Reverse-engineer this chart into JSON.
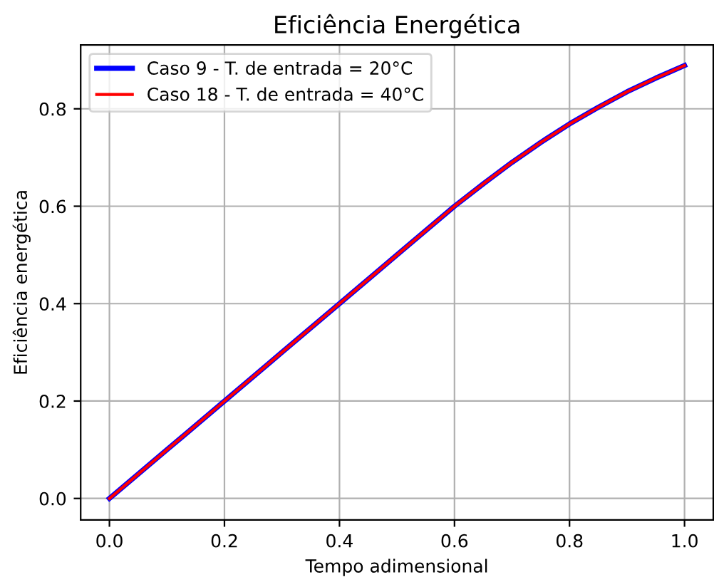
{
  "chart_data": {
    "type": "line",
    "title": "Eficiência Energética",
    "xlabel": "Tempo adimensional",
    "ylabel": "Eficiência energética",
    "x": [
      0,
      0.1,
      0.2,
      0.3,
      0.4,
      0.5,
      0.6,
      0.65,
      0.7,
      0.75,
      0.8,
      0.85,
      0.9,
      0.95,
      1.0
    ],
    "series": [
      {
        "name": "Caso 9 - T. de entrada = 20°C",
        "color": "#0000ff",
        "values": [
          0,
          0.1,
          0.2,
          0.3,
          0.4,
          0.5,
          0.6,
          0.646,
          0.69,
          0.731,
          0.769,
          0.803,
          0.835,
          0.863,
          0.889
        ]
      },
      {
        "name": "Caso 18 - T. de entrada = 40°C",
        "color": "#ff0000",
        "values": [
          0,
          0.1,
          0.2,
          0.3,
          0.4,
          0.5,
          0.6,
          0.646,
          0.69,
          0.731,
          0.769,
          0.803,
          0.835,
          0.863,
          0.889
        ]
      }
    ],
    "xlim": [
      -0.05,
      1.05
    ],
    "ylim": [
      -0.044,
      0.931
    ],
    "xticks": [
      {
        "value": 0,
        "label": "0.0"
      },
      0.2,
      0.4,
      0.6,
      0.8,
      {
        "value": 1,
        "label": "1.0"
      }
    ],
    "yticks": [
      {
        "value": 0,
        "label": "0.0"
      },
      0.2,
      0.4,
      0.6,
      0.8
    ],
    "grid": true,
    "legend": "top left",
    "marker": "none",
    "line_style": "solid"
  }
}
